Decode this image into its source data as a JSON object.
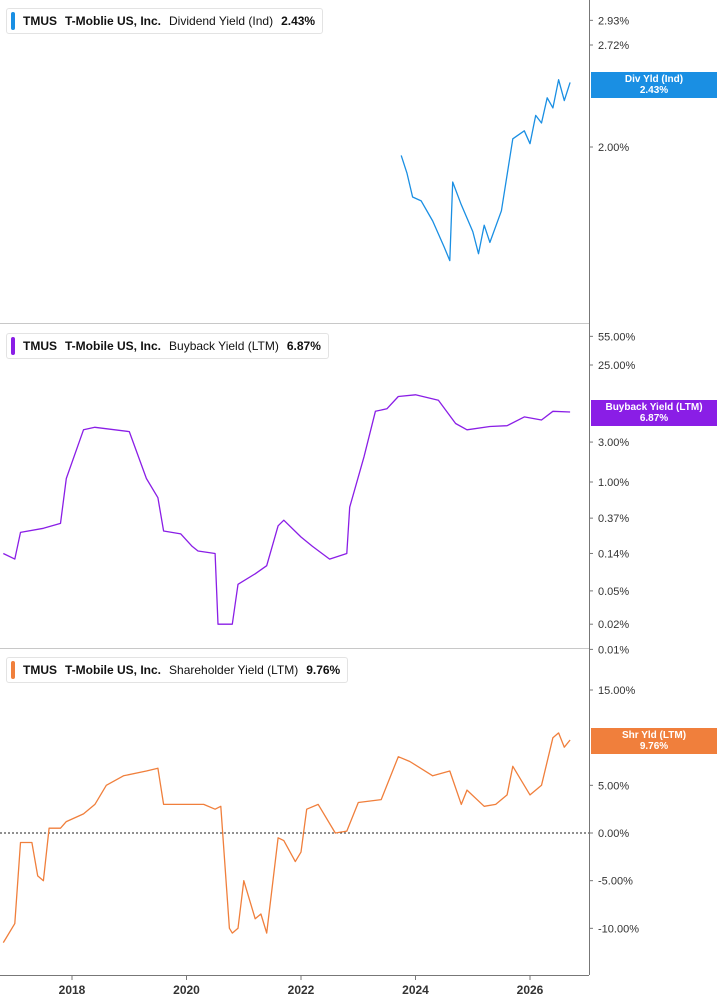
{
  "panels": [
    {
      "ticker": "TMUS",
      "company": "T-Moblie US, Inc.",
      "metric": "Dividend Yield (Ind)",
      "value": "2.43%",
      "tag_line1": "Div Yld (Ind)",
      "tag_line2": "2.43%"
    },
    {
      "ticker": "TMUS",
      "company": "T-Mobile US, Inc.",
      "metric": "Buyback Yield (LTM)",
      "value": "6.87%",
      "tag_line1": "Buyback Yield (LTM)",
      "tag_line2": "6.87%"
    },
    {
      "ticker": "TMUS",
      "company": "T-Mobile US, Inc.",
      "metric": "Shareholder Yield (LTM)",
      "value": "9.76%",
      "tag_line1": "Shr Yld (LTM)",
      "tag_line2": "9.76%"
    }
  ],
  "colors": {
    "dividend": "#1a8fe3",
    "buyback": "#8a1ee6",
    "shareholder": "#f07f3c",
    "axis": "#777777"
  },
  "chart_data": [
    {
      "type": "line",
      "title": "TMUS T-Mobile US, Inc. Dividend Yield (Ind) 2.43%",
      "y_scale": "log",
      "y_ticks": [
        "2.93%",
        "2.72%",
        "2.00%"
      ],
      "series": [
        {
          "name": "Dividend Yield (Ind)",
          "x": [
            2023.75,
            2023.85,
            2023.95,
            2024.1,
            2024.3,
            2024.5,
            2024.6,
            2024.65,
            2024.8,
            2025.0,
            2025.1,
            2025.2,
            2025.3,
            2025.5,
            2025.7,
            2025.9,
            2026.0,
            2026.1,
            2026.2,
            2026.3,
            2026.4,
            2026.5,
            2026.6,
            2026.7
          ],
          "values": [
            1.95,
            1.85,
            1.72,
            1.7,
            1.6,
            1.48,
            1.42,
            1.8,
            1.68,
            1.55,
            1.45,
            1.58,
            1.5,
            1.65,
            2.05,
            2.1,
            2.02,
            2.2,
            2.15,
            2.32,
            2.25,
            2.45,
            2.3,
            2.43
          ]
        }
      ]
    },
    {
      "type": "line",
      "title": "TMUS T-Mobile US, Inc. Buyback Yield (LTM) 6.87%",
      "y_scale": "log",
      "y_ticks": [
        "55.00%",
        "25.00%",
        "3.00%",
        "1.00%",
        "0.37%",
        "0.14%",
        "0.05%",
        "0.02%",
        "0.01%"
      ],
      "series": [
        {
          "name": "Buyback Yield (LTM)",
          "x": [
            2016.8,
            2017.0,
            2017.1,
            2017.5,
            2017.8,
            2017.9,
            2018.2,
            2018.4,
            2019.0,
            2019.3,
            2019.5,
            2019.6,
            2019.9,
            2020.1,
            2020.2,
            2020.5,
            2020.55,
            2020.8,
            2020.9,
            2021.2,
            2021.4,
            2021.6,
            2021.7,
            2022.0,
            2022.2,
            2022.5,
            2022.8,
            2022.85,
            2023.1,
            2023.3,
            2023.5,
            2023.7,
            2024.0,
            2024.4,
            2024.7,
            2024.9,
            2025.3,
            2025.6,
            2025.9,
            2026.2,
            2026.4,
            2026.7
          ],
          "values": [
            0.14,
            0.12,
            0.25,
            0.28,
            0.32,
            1.1,
            4.2,
            4.5,
            4.0,
            1.1,
            0.65,
            0.26,
            0.24,
            0.17,
            0.15,
            0.14,
            0.02,
            0.02,
            0.06,
            0.08,
            0.1,
            0.3,
            0.35,
            0.22,
            0.17,
            0.12,
            0.14,
            0.5,
            2.0,
            7.0,
            7.5,
            10.5,
            11.0,
            9.5,
            5.0,
            4.2,
            4.6,
            4.7,
            6.0,
            5.5,
            7.0,
            6.87
          ]
        }
      ]
    },
    {
      "type": "line",
      "title": "TMUS T-Mobile US, Inc. Shareholder Yield (LTM) 9.76%",
      "y_ticks": [
        "15.00%",
        "5.00%",
        "0.00%",
        "-5.00%",
        "-10.00%"
      ],
      "reference_line": 0,
      "series": [
        {
          "name": "Shareholder Yield (LTM)",
          "x": [
            2016.8,
            2016.85,
            2017.0,
            2017.1,
            2017.3,
            2017.4,
            2017.5,
            2017.6,
            2017.8,
            2017.9,
            2018.2,
            2018.4,
            2018.6,
            2018.9,
            2019.3,
            2019.5,
            2019.6,
            2019.9,
            2020.1,
            2020.3,
            2020.5,
            2020.6,
            2020.75,
            2020.8,
            2020.9,
            2021.0,
            2021.2,
            2021.3,
            2021.4,
            2021.6,
            2021.7,
            2021.9,
            2022.0,
            2022.1,
            2022.3,
            2022.6,
            2022.8,
            2023.0,
            2023.4,
            2023.7,
            2023.9,
            2024.3,
            2024.6,
            2024.8,
            2024.9,
            2025.2,
            2025.4,
            2025.6,
            2025.7,
            2026.0,
            2026.1,
            2026.2,
            2026.4,
            2026.5,
            2026.6,
            2026.7
          ],
          "values": [
            -11.5,
            -11.0,
            -9.5,
            -1.0,
            -1.0,
            -4.5,
            -5.0,
            0.5,
            0.5,
            1.2,
            2.0,
            3.0,
            5.0,
            6.0,
            6.5,
            6.8,
            3.0,
            3.0,
            3.0,
            3.0,
            2.5,
            2.8,
            -10.0,
            -10.5,
            -10.0,
            -5.0,
            -9.0,
            -8.5,
            -10.5,
            -0.5,
            -0.8,
            -3.0,
            -2.0,
            2.5,
            3.0,
            0.0,
            0.2,
            3.2,
            3.5,
            8.0,
            7.5,
            6.0,
            6.5,
            3.0,
            4.5,
            2.8,
            3.0,
            4.0,
            7.0,
            4.0,
            4.5,
            5.0,
            10.0,
            10.5,
            9.0,
            9.76
          ]
        }
      ]
    }
  ],
  "x_axis": {
    "ticks": [
      "2018",
      "2020",
      "2022",
      "2024",
      "2026"
    ],
    "range": [
      2016.8,
      2026.85
    ]
  }
}
